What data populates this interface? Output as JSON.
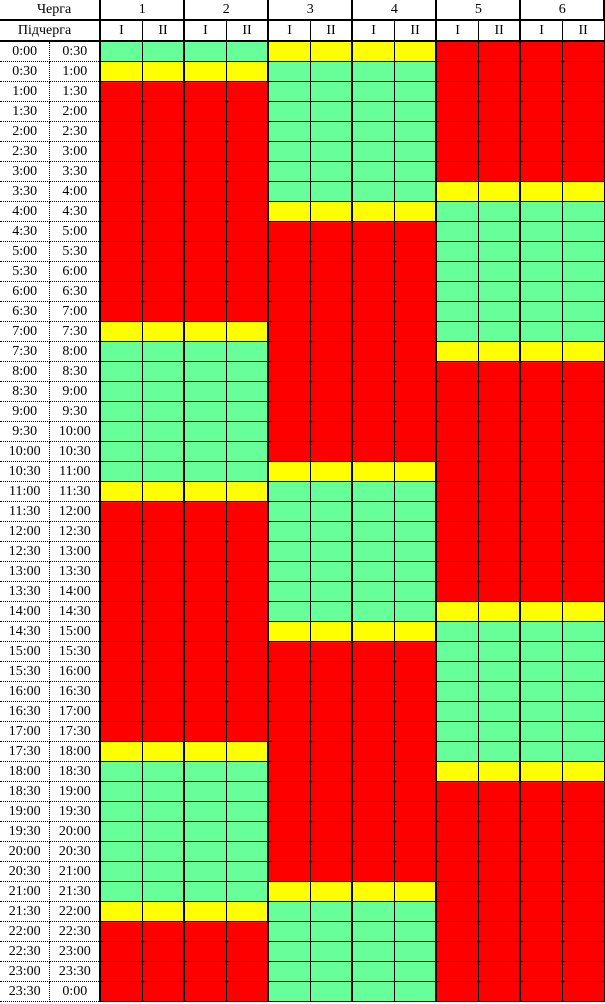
{
  "header": {
    "queue_label": "Черга",
    "subqueue_label": "Підчерга",
    "groups": [
      "1",
      "2",
      "3",
      "4",
      "5",
      "6"
    ],
    "subgroups": [
      "I",
      "II"
    ]
  },
  "status_colors": {
    "G": "#66ff99",
    "Y": "#ffff00",
    "R": "#ff0000"
  },
  "rows": [
    {
      "start": "0:00",
      "end": "0:30",
      "states": "GGGGYYYYRRRR"
    },
    {
      "start": "0:30",
      "end": "1:00",
      "states": "YYYYGGGGRRRR"
    },
    {
      "start": "1:00",
      "end": "1:30",
      "states": "RRRRGGGGRRRR"
    },
    {
      "start": "1:30",
      "end": "2:00",
      "states": "RRRRGGGGRRRR"
    },
    {
      "start": "2:00",
      "end": "2:30",
      "states": "RRRRGGGGRRRR"
    },
    {
      "start": "2:30",
      "end": "3:00",
      "states": "RRRRGGGGRRRR"
    },
    {
      "start": "3:00",
      "end": "3:30",
      "states": "RRRRGGGGRRRR"
    },
    {
      "start": "3:30",
      "end": "4:00",
      "states": "RRRRGGGGYYYY"
    },
    {
      "start": "4:00",
      "end": "4:30",
      "states": "RRRRYYYYGGGG"
    },
    {
      "start": "4:30",
      "end": "5:00",
      "states": "RRRRRRRRGGGG"
    },
    {
      "start": "5:00",
      "end": "5:30",
      "states": "RRRRRRRRGGGG"
    },
    {
      "start": "5:30",
      "end": "6:00",
      "states": "RRRRRRRRGGGG"
    },
    {
      "start": "6:00",
      "end": "6:30",
      "states": "RRRRRRRRGGGG"
    },
    {
      "start": "6:30",
      "end": "7:00",
      "states": "RRRRRRRRGGGG"
    },
    {
      "start": "7:00",
      "end": "7:30",
      "states": "YYYYRRRRGGGG"
    },
    {
      "start": "7:30",
      "end": "8:00",
      "states": "GGGGRRRRYYYY"
    },
    {
      "start": "8:00",
      "end": "8:30",
      "states": "GGGGRRRRRRRR"
    },
    {
      "start": "8:30",
      "end": "9:00",
      "states": "GGGGRRRRRRRR"
    },
    {
      "start": "9:00",
      "end": "9:30",
      "states": "GGGGRRRRRRRR"
    },
    {
      "start": "9:30",
      "end": "10:00",
      "states": "GGGGRRRRRRRR"
    },
    {
      "start": "10:00",
      "end": "10:30",
      "states": "GGGGRRRRRRRR"
    },
    {
      "start": "10:30",
      "end": "11:00",
      "states": "GGGGYYYYRRRR"
    },
    {
      "start": "11:00",
      "end": "11:30",
      "states": "YYYYGGGGRRRR"
    },
    {
      "start": "11:30",
      "end": "12:00",
      "states": "RRRRGGGGRRRR"
    },
    {
      "start": "12:00",
      "end": "12:30",
      "states": "RRRRGGGGRRRR"
    },
    {
      "start": "12:30",
      "end": "13:00",
      "states": "RRRRGGGGRRRR"
    },
    {
      "start": "13:00",
      "end": "13:30",
      "states": "RRRRGGGGRRRR"
    },
    {
      "start": "13:30",
      "end": "14:00",
      "states": "RRRRGGGGRRRR"
    },
    {
      "start": "14:00",
      "end": "14:30",
      "states": "RRRRGGGGYYYY"
    },
    {
      "start": "14:30",
      "end": "15:00",
      "states": "RRRRYYYYGGGG"
    },
    {
      "start": "15:00",
      "end": "15:30",
      "states": "RRRRRRRRGGGG"
    },
    {
      "start": "15:30",
      "end": "16:00",
      "states": "RRRRRRRRGGGG"
    },
    {
      "start": "16:00",
      "end": "16:30",
      "states": "RRRRRRRRGGGG"
    },
    {
      "start": "16:30",
      "end": "17:00",
      "states": "RRRRRRRRGGGG"
    },
    {
      "start": "17:00",
      "end": "17:30",
      "states": "RRRRRRRRGGGG"
    },
    {
      "start": "17:30",
      "end": "18:00",
      "states": "YYYYRRRRGGGG"
    },
    {
      "start": "18:00",
      "end": "18:30",
      "states": "GGGGRRRRYYYY"
    },
    {
      "start": "18:30",
      "end": "19:00",
      "states": "GGGGRRRRRRRR"
    },
    {
      "start": "19:00",
      "end": "19:30",
      "states": "GGGGRRRRRRRR"
    },
    {
      "start": "19:30",
      "end": "20:00",
      "states": "GGGGRRRRRRRR"
    },
    {
      "start": "20:00",
      "end": "20:30",
      "states": "GGGGRRRRRRRR"
    },
    {
      "start": "20:30",
      "end": "21:00",
      "states": "GGGGRRRRRRRR"
    },
    {
      "start": "21:00",
      "end": "21:30",
      "states": "GGGGYYYYRRRR"
    },
    {
      "start": "21:30",
      "end": "22:00",
      "states": "YYYYGGGGRRRR"
    },
    {
      "start": "22:00",
      "end": "22:30",
      "states": "RRRRGGGGRRRR"
    },
    {
      "start": "22:30",
      "end": "23:00",
      "states": "RRRRGGGGRRRR"
    },
    {
      "start": "23:00",
      "end": "23:30",
      "states": "RRRRGGGGRRRR"
    },
    {
      "start": "23:30",
      "end": "0:00",
      "states": "RRRRGGGGRRRR"
    }
  ]
}
